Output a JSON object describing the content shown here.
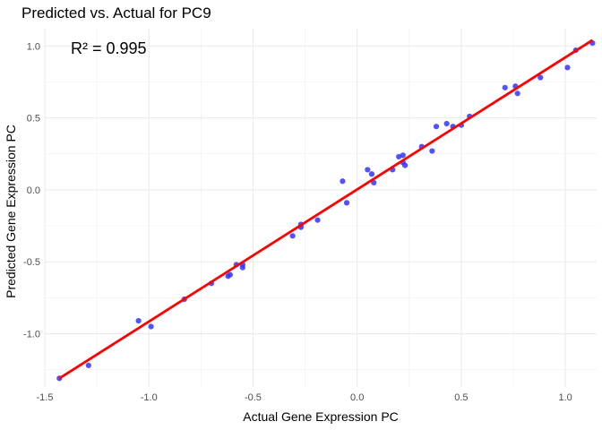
{
  "chart_data": {
    "type": "scatter",
    "title": "Predicted vs. Actual for PC9",
    "xlabel": "Actual Gene Expression PC",
    "ylabel": "Predicted Gene Expression PC",
    "xlim": [
      -1.5,
      1.15
    ],
    "ylim": [
      -1.37,
      1.12
    ],
    "x_ticks": [
      -1.5,
      -1.0,
      -0.5,
      0.0,
      0.5,
      1.0
    ],
    "x_tick_labels": [
      "-1.5",
      "-1.0",
      "-0.5",
      "0.0",
      "0.5",
      "1.0"
    ],
    "y_ticks": [
      -1.0,
      -0.5,
      0.0,
      0.5,
      1.0
    ],
    "y_tick_labels": [
      "-1.0",
      "-0.5",
      "0.0",
      "0.5",
      "1.0"
    ],
    "grid": true,
    "annotation": "R² = 0.995",
    "point_color": "#3333ff",
    "line_color": "#ff0000",
    "fit_line": {
      "x": [
        -1.43,
        1.13
      ],
      "y": [
        -1.31,
        1.04
      ]
    },
    "points": [
      {
        "x": -1.43,
        "y": -1.31
      },
      {
        "x": -1.29,
        "y": -1.22
      },
      {
        "x": -1.05,
        "y": -0.91
      },
      {
        "x": -0.99,
        "y": -0.95
      },
      {
        "x": -0.83,
        "y": -0.76
      },
      {
        "x": -0.7,
        "y": -0.65
      },
      {
        "x": -0.62,
        "y": -0.6
      },
      {
        "x": -0.61,
        "y": -0.59
      },
      {
        "x": -0.58,
        "y": -0.52
      },
      {
        "x": -0.55,
        "y": -0.54
      },
      {
        "x": -0.55,
        "y": -0.52
      },
      {
        "x": -0.31,
        "y": -0.32
      },
      {
        "x": -0.27,
        "y": -0.26
      },
      {
        "x": -0.27,
        "y": -0.24
      },
      {
        "x": -0.19,
        "y": -0.21
      },
      {
        "x": -0.07,
        "y": 0.06
      },
      {
        "x": -0.05,
        "y": -0.09
      },
      {
        "x": 0.05,
        "y": 0.14
      },
      {
        "x": 0.07,
        "y": 0.11
      },
      {
        "x": 0.08,
        "y": 0.05
      },
      {
        "x": 0.17,
        "y": 0.14
      },
      {
        "x": 0.2,
        "y": 0.23
      },
      {
        "x": 0.22,
        "y": 0.24
      },
      {
        "x": 0.22,
        "y": 0.19
      },
      {
        "x": 0.23,
        "y": 0.17
      },
      {
        "x": 0.31,
        "y": 0.3
      },
      {
        "x": 0.36,
        "y": 0.27
      },
      {
        "x": 0.38,
        "y": 0.44
      },
      {
        "x": 0.43,
        "y": 0.46
      },
      {
        "x": 0.46,
        "y": 0.44
      },
      {
        "x": 0.5,
        "y": 0.45
      },
      {
        "x": 0.54,
        "y": 0.51
      },
      {
        "x": 0.71,
        "y": 0.71
      },
      {
        "x": 0.76,
        "y": 0.72
      },
      {
        "x": 0.77,
        "y": 0.67
      },
      {
        "x": 0.88,
        "y": 0.78
      },
      {
        "x": 1.01,
        "y": 0.85
      },
      {
        "x": 1.05,
        "y": 0.97
      },
      {
        "x": 1.13,
        "y": 1.02
      }
    ]
  }
}
